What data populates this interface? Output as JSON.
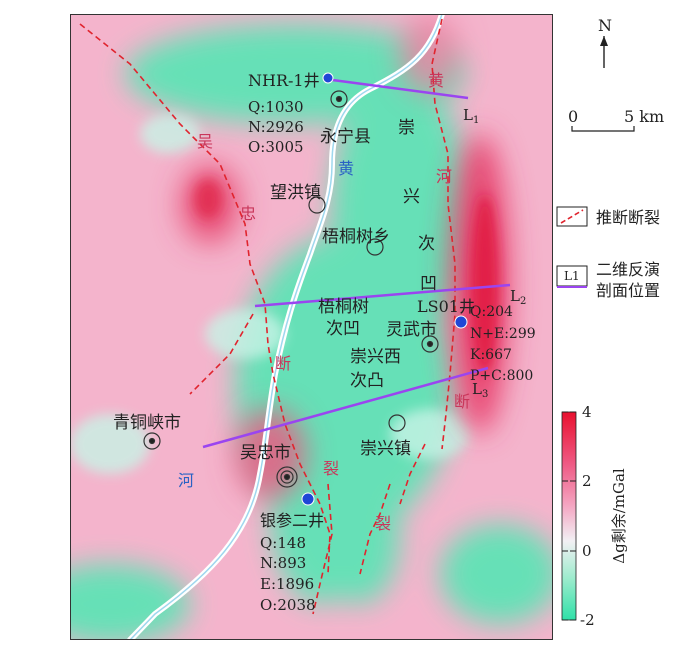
{
  "north_label": "N",
  "scale_bar": {
    "start": "0",
    "end": "5 km"
  },
  "colorbar": {
    "title": "Δg剩余/mGal",
    "ticks": [
      "4",
      "2",
      "0",
      "-2"
    ],
    "colors": {
      "top": "#e8102e",
      "mid": "#f4a6c2",
      "low": "#f2f0f4",
      "bottom": "#2fe0a8"
    }
  },
  "legend": {
    "fault_label": "推断断裂",
    "profile_box": "L1",
    "profile_label_line1": "二维反演",
    "profile_label_line2": "剖面位置"
  },
  "colors": {
    "fault": "#e0242e",
    "profile": "#9a45f0",
    "river": "#ffffff",
    "well": "#1f47d6"
  },
  "fault_names": {
    "wuzhong": [
      "吴",
      "忠",
      "断",
      "裂"
    ],
    "huanghe": [
      "黄",
      "河",
      "断",
      "裂"
    ]
  },
  "river_labels": [
    "黄",
    "河"
  ],
  "depression_names": {
    "chongxing": [
      "崇",
      "兴",
      "次",
      "凹"
    ],
    "wutongshu": [
      "梧桐树",
      "次凹"
    ],
    "chongxingxi": [
      "崇兴西",
      "次凸"
    ]
  },
  "places": {
    "yongning": "永宁县",
    "wanghong": "望洪镇",
    "wutongshu": "梧桐树乡",
    "lingwu": "灵武市",
    "qingtongxia": "青铜峡市",
    "wuzhong": "吴忠市",
    "chongxing": "崇兴镇"
  },
  "profiles": {
    "L1": "L1",
    "L2": "L2",
    "L3": "L3"
  },
  "wells": {
    "nhr": {
      "name": "NHR-1井",
      "values": [
        "Q:1030",
        "N:2926",
        "O:3005"
      ]
    },
    "ls01": {
      "name": "LS01井",
      "values": [
        "Q:204",
        "N+E:299",
        "K:667",
        "P+C:800"
      ]
    },
    "yincan": {
      "name": "银参二井",
      "values": [
        "Q:148",
        "N:893",
        "E:1896",
        "O:2038"
      ]
    }
  }
}
